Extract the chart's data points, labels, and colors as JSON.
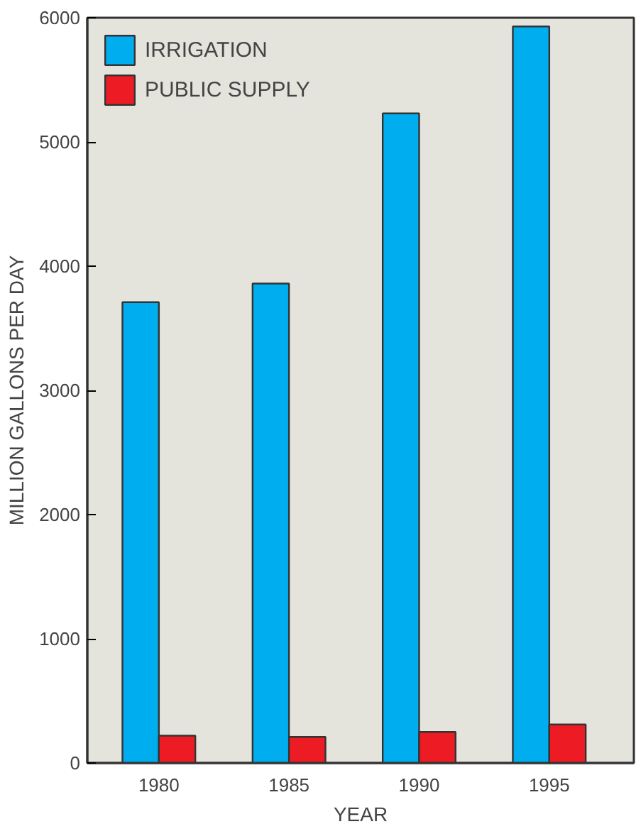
{
  "chart_data": {
    "type": "bar",
    "xlabel": "YEAR",
    "ylabel": "MILLION GALLONS PER DAY",
    "categories": [
      "1980",
      "1985",
      "1990",
      "1995"
    ],
    "series": [
      {
        "name": "IRRIGATION",
        "color": "#00aeef",
        "values": [
          3710,
          3860,
          5230,
          5930
        ]
      },
      {
        "name": "PUBLIC SUPPLY",
        "color": "#ed1c24",
        "values": [
          220,
          210,
          250,
          310
        ]
      }
    ],
    "ylim": [
      0,
      6000
    ],
    "yticks": [
      0,
      1000,
      2000,
      3000,
      4000,
      5000,
      6000
    ],
    "grid": false,
    "legend": "top left"
  }
}
